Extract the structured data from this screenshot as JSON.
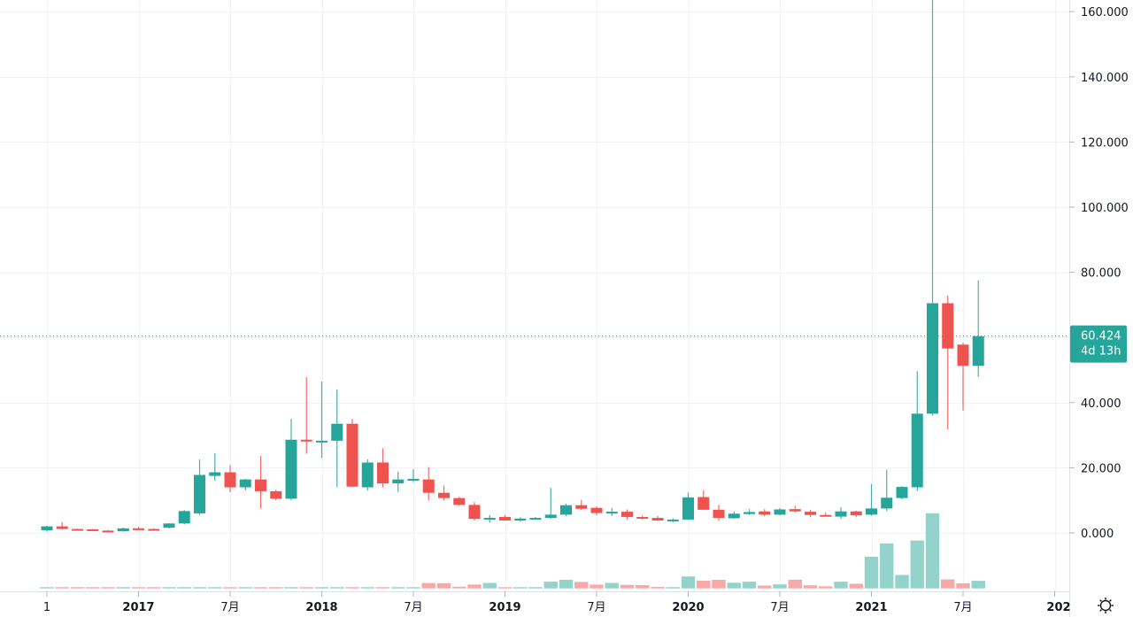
{
  "chart_data": {
    "type": "candlestick",
    "title": "",
    "xlabel": "",
    "ylabel": "",
    "ylim": [
      -15,
      165
    ],
    "y_ticks": [
      "0.000",
      "20.000",
      "40.000",
      "60.000",
      "80.000",
      "100.000",
      "120.000",
      "140.000",
      "160.000"
    ],
    "y_tick_values": [
      0,
      20,
      40,
      60,
      80,
      100,
      120,
      140,
      160
    ],
    "x_ticks": [
      {
        "label": "1",
        "index": 0,
        "bold": false
      },
      {
        "label": "2017",
        "index": 6,
        "bold": true
      },
      {
        "label": "7月",
        "index": 12,
        "bold": false
      },
      {
        "label": "2018",
        "index": 18,
        "bold": true
      },
      {
        "label": "7月",
        "index": 24,
        "bold": false
      },
      {
        "label": "2019",
        "index": 30,
        "bold": true
      },
      {
        "label": "7月",
        "index": 36,
        "bold": false
      },
      {
        "label": "2020",
        "index": 42,
        "bold": true
      },
      {
        "label": "7月",
        "index": 48,
        "bold": false
      },
      {
        "label": "2021",
        "index": 54,
        "bold": true
      },
      {
        "label": "7月",
        "index": 60,
        "bold": false
      },
      {
        "label": "202",
        "index": 66,
        "bold": true
      }
    ],
    "grid": true,
    "colors": {
      "up": "#26a69a",
      "down": "#ef5350",
      "up_volume": "#94d3cc",
      "down_volume": "#f7a9a7",
      "grid": "#f0f3fa",
      "last_price": "#26a69a"
    },
    "last_price": {
      "value": "60.424",
      "countdown": "4d 13h",
      "price": 60.424
    },
    "candles": [
      {
        "o": 0.8,
        "h": 2.2,
        "l": 0.4,
        "c": 2.0,
        "v": 0.3
      },
      {
        "o": 2.0,
        "h": 3.3,
        "l": 1.0,
        "c": 1.2,
        "v": 0.3
      },
      {
        "o": 1.2,
        "h": 1.3,
        "l": 0.9,
        "c": 1.1,
        "v": 0.3
      },
      {
        "o": 1.1,
        "h": 1.2,
        "l": 0.6,
        "c": 0.7,
        "v": 0.3
      },
      {
        "o": 0.7,
        "h": 0.9,
        "l": 0.3,
        "c": 0.5,
        "v": 0.3
      },
      {
        "o": 0.5,
        "h": 1.6,
        "l": 0.4,
        "c": 1.4,
        "v": 0.3
      },
      {
        "o": 1.4,
        "h": 1.9,
        "l": 1.0,
        "c": 1.2,
        "v": 0.3
      },
      {
        "o": 1.2,
        "h": 1.4,
        "l": 0.9,
        "c": 1.1,
        "v": 0.3
      },
      {
        "o": 1.6,
        "h": 3.0,
        "l": 1.4,
        "c": 2.9,
        "v": 0.3
      },
      {
        "o": 2.9,
        "h": 7.0,
        "l": 2.6,
        "c": 6.7,
        "v": 0.3
      },
      {
        "o": 6.0,
        "h": 22.5,
        "l": 5.5,
        "c": 17.8,
        "v": 0.3
      },
      {
        "o": 17.5,
        "h": 24.5,
        "l": 16.0,
        "c": 18.6,
        "v": 0.3
      },
      {
        "o": 18.6,
        "h": 20.8,
        "l": 12.5,
        "c": 14.0,
        "v": 0.3
      },
      {
        "o": 14.0,
        "h": 16.6,
        "l": 13.0,
        "c": 16.4,
        "v": 0.3
      },
      {
        "o": 16.4,
        "h": 23.6,
        "l": 7.5,
        "c": 12.8,
        "v": 0.3
      },
      {
        "o": 12.8,
        "h": 13.2,
        "l": 10.0,
        "c": 10.5,
        "v": 0.3
      },
      {
        "o": 10.5,
        "h": 35.0,
        "l": 10.0,
        "c": 28.6,
        "v": 0.3
      },
      {
        "o": 28.6,
        "h": 47.8,
        "l": 24.3,
        "c": 28.1,
        "v": 0.3
      },
      {
        "o": 28.1,
        "h": 46.5,
        "l": 23.0,
        "c": 28.3,
        "v": 0.3
      },
      {
        "o": 28.3,
        "h": 44.0,
        "l": 14.0,
        "c": 33.5,
        "v": 0.3
      },
      {
        "o": 33.5,
        "h": 35.0,
        "l": 14.0,
        "c": 14.2,
        "v": 0.3
      },
      {
        "o": 14.0,
        "h": 22.6,
        "l": 13.0,
        "c": 21.6,
        "v": 0.3
      },
      {
        "o": 21.6,
        "h": 26.0,
        "l": 14.0,
        "c": 15.2,
        "v": 0.3
      },
      {
        "o": 15.2,
        "h": 18.8,
        "l": 12.6,
        "c": 16.4,
        "v": 0.3
      },
      {
        "o": 16.3,
        "h": 19.6,
        "l": 15.6,
        "c": 16.6,
        "v": 0.3
      },
      {
        "o": 16.4,
        "h": 20.2,
        "l": 10.0,
        "c": 12.3,
        "v": 4.2
      },
      {
        "o": 12.3,
        "h": 14.5,
        "l": 10.0,
        "c": 10.7,
        "v": 4.1
      },
      {
        "o": 10.7,
        "h": 11.0,
        "l": 8.3,
        "c": 8.6,
        "v": 1.6
      },
      {
        "o": 8.6,
        "h": 9.5,
        "l": 3.8,
        "c": 4.3,
        "v": 3.1
      },
      {
        "o": 4.3,
        "h": 5.5,
        "l": 3.2,
        "c": 4.6,
        "v": 4.3
      },
      {
        "o": 4.9,
        "h": 5.5,
        "l": 3.8,
        "c": 3.8,
        "v": 1.0
      },
      {
        "o": 3.8,
        "h": 4.8,
        "l": 3.4,
        "c": 4.4,
        "v": 0.6
      },
      {
        "o": 4.4,
        "h": 4.9,
        "l": 4.1,
        "c": 4.6,
        "v": 0.7
      },
      {
        "o": 4.6,
        "h": 13.8,
        "l": 4.3,
        "c": 5.6,
        "v": 5.2
      },
      {
        "o": 5.6,
        "h": 9.0,
        "l": 5.1,
        "c": 8.5,
        "v": 6.5
      },
      {
        "o": 8.5,
        "h": 10.1,
        "l": 7.0,
        "c": 7.4,
        "v": 5.0
      },
      {
        "o": 7.7,
        "h": 8.2,
        "l": 5.4,
        "c": 6.1,
        "v": 3.1
      },
      {
        "o": 6.0,
        "h": 7.7,
        "l": 5.2,
        "c": 6.5,
        "v": 4.3
      },
      {
        "o": 6.5,
        "h": 7.2,
        "l": 4.1,
        "c": 4.9,
        "v": 2.9
      },
      {
        "o": 4.9,
        "h": 5.3,
        "l": 4.0,
        "c": 4.6,
        "v": 2.7
      },
      {
        "o": 4.6,
        "h": 5.2,
        "l": 3.7,
        "c": 3.8,
        "v": 1.5
      },
      {
        "o": 3.8,
        "h": 4.5,
        "l": 3.3,
        "c": 4.1,
        "v": 1.1
      },
      {
        "o": 4.1,
        "h": 12.4,
        "l": 3.9,
        "c": 10.9,
        "v": 8.9
      },
      {
        "o": 11.0,
        "h": 13.0,
        "l": 9.1,
        "c": 7.1,
        "v": 5.9
      },
      {
        "o": 7.1,
        "h": 8.6,
        "l": 3.7,
        "c": 4.6,
        "v": 6.5
      },
      {
        "o": 4.5,
        "h": 6.6,
        "l": 4.3,
        "c": 5.9,
        "v": 4.4
      },
      {
        "o": 5.8,
        "h": 7.3,
        "l": 5.5,
        "c": 6.4,
        "v": 5.2
      },
      {
        "o": 6.6,
        "h": 7.3,
        "l": 5.1,
        "c": 5.6,
        "v": 2.4
      },
      {
        "o": 5.6,
        "h": 7.6,
        "l": 5.4,
        "c": 7.2,
        "v": 3.2
      },
      {
        "o": 7.3,
        "h": 8.3,
        "l": 6.3,
        "c": 6.6,
        "v": 6.6
      },
      {
        "o": 6.5,
        "h": 7.1,
        "l": 4.8,
        "c": 5.5,
        "v": 2.6
      },
      {
        "o": 5.5,
        "h": 6.2,
        "l": 5.0,
        "c": 5.2,
        "v": 1.9
      },
      {
        "o": 5.0,
        "h": 7.9,
        "l": 4.3,
        "c": 6.6,
        "v": 5.2
      },
      {
        "o": 6.6,
        "h": 6.8,
        "l": 4.8,
        "c": 5.4,
        "v": 3.7
      },
      {
        "o": 5.6,
        "h": 15.0,
        "l": 5.3,
        "c": 7.5,
        "v": 23.0
      },
      {
        "o": 7.5,
        "h": 19.4,
        "l": 6.7,
        "c": 10.8,
        "v": 32.5
      },
      {
        "o": 10.7,
        "h": 14.4,
        "l": 10.3,
        "c": 14.1,
        "v": 10.0
      },
      {
        "o": 14.0,
        "h": 49.7,
        "l": 12.8,
        "c": 36.6,
        "v": 34.5
      },
      {
        "o": 36.6,
        "h": 166.0,
        "l": 36.0,
        "c": 70.5,
        "v": 54.0
      },
      {
        "o": 70.5,
        "h": 72.9,
        "l": 31.8,
        "c": 56.6,
        "v": 6.8
      },
      {
        "o": 57.8,
        "h": 58.4,
        "l": 37.6,
        "c": 51.3,
        "v": 4.0
      },
      {
        "o": 51.3,
        "h": 77.5,
        "l": 47.9,
        "c": 60.4,
        "v": 5.8
      }
    ]
  },
  "price_axis": {
    "labels": [
      "160.000",
      "140.000",
      "120.000",
      "100.000",
      "80.000",
      "40.000",
      "20.000",
      "0.000"
    ]
  },
  "last_price_badge": {
    "price": "60.424",
    "countdown": "4d 13h",
    "color": "#26a69a"
  },
  "time_axis": {
    "labels": [
      "1",
      "2017",
      "7月",
      "2018",
      "7月",
      "2019",
      "7月",
      "2020",
      "7月",
      "2021",
      "7月",
      "202"
    ]
  },
  "settings": {
    "icon": "gear-icon"
  }
}
